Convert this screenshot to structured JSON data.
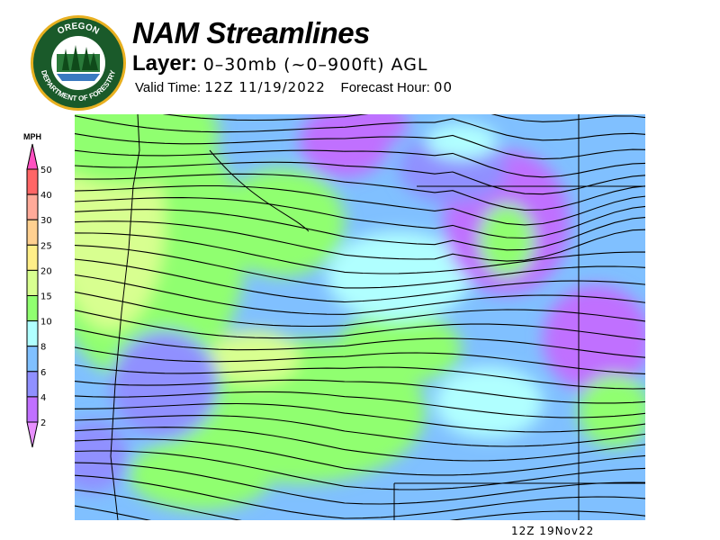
{
  "header": {
    "title": "NAM Streamlines",
    "layer_label": "Layer:",
    "layer_value": "0–30mb (~0–900ft) AGL",
    "valid_label": "Valid Time:",
    "valid_value": "12Z 11/19/2022",
    "forecast_label": "Forecast Hour:",
    "forecast_value": "00"
  },
  "logo": {
    "text_top": "OREGON",
    "text_bottom": "DEPARTMENT OF FORESTRY"
  },
  "legend": {
    "unit": "MPH",
    "ticks": [
      "50",
      "40",
      "30",
      "25",
      "20",
      "15",
      "10",
      "8",
      "6",
      "4",
      "2"
    ],
    "colors": {
      "above_50": "#ff50c0",
      "40_50": "#ff6666",
      "30_40": "#ffaa99",
      "25_30": "#ffd090",
      "20_25": "#ffee88",
      "15_20": "#d8ff90",
      "10_15": "#90ff70",
      "8_10": "#b0ffff",
      "6_8": "#80c0ff",
      "4_6": "#9090ff",
      "2_4": "#c070ff",
      "below_2": "#e890ff"
    }
  },
  "footer": {
    "timestamp": "12Z 19Nov22"
  }
}
